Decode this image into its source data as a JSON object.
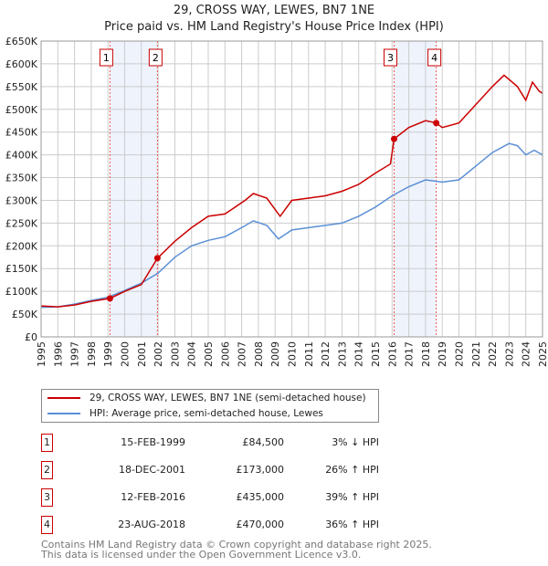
{
  "chart_data": {
    "type": "line",
    "title": "29, CROSS WAY, LEWES, BN7 1NE",
    "subtitle": "Price paid vs. HM Land Registry's House Price Index (HPI)",
    "xlim": [
      1995,
      2025
    ],
    "ylim": [
      0,
      650000
    ],
    "x_ticks": [
      "1995",
      "1996",
      "1997",
      "1998",
      "1999",
      "2000",
      "2001",
      "2002",
      "2003",
      "2004",
      "2005",
      "2006",
      "2007",
      "2008",
      "2009",
      "2010",
      "2011",
      "2012",
      "2013",
      "2014",
      "2015",
      "2016",
      "2017",
      "2018",
      "2019",
      "2020",
      "2021",
      "2022",
      "2023",
      "2024",
      "2025"
    ],
    "y_ticks": [
      "£0",
      "£50K",
      "£100K",
      "£150K",
      "£200K",
      "£250K",
      "£300K",
      "£350K",
      "£400K",
      "£450K",
      "£500K",
      "£550K",
      "£600K",
      "£650K"
    ],
    "grid": true,
    "series": [
      {
        "name": "29, CROSS WAY, LEWES, BN7 1NE (semi-detached house)",
        "color": "#cc0000",
        "x": [
          1995,
          1996,
          1997,
          1998,
          1999.12,
          2000,
          2001,
          2001.96,
          2003,
          2004,
          2005,
          2006,
          2007.2,
          2007.7,
          2008.5,
          2009.3,
          2010,
          2011,
          2012,
          2013,
          2014,
          2015,
          2015.9,
          2016.12,
          2017,
          2018,
          2018.64,
          2019,
          2020,
          2021,
          2022,
          2022.7,
          2023.5,
          2024,
          2024.4,
          2024.8,
          2025
        ],
        "y": [
          68000,
          66000,
          70000,
          78000,
          84500,
          100000,
          115000,
          173000,
          210000,
          240000,
          265000,
          270000,
          300000,
          315000,
          305000,
          265000,
          300000,
          305000,
          310000,
          320000,
          335000,
          360000,
          380000,
          435000,
          460000,
          475000,
          470000,
          460000,
          470000,
          510000,
          550000,
          575000,
          550000,
          520000,
          560000,
          540000,
          535000
        ]
      },
      {
        "name": "HPI: Average price, semi-detached house, Lewes",
        "color": "#5b8fd6",
        "x": [
          1995,
          1996,
          1997,
          1998,
          1999,
          2000,
          2001,
          2002,
          2003,
          2004,
          2005,
          2006,
          2007,
          2007.7,
          2008.5,
          2009.2,
          2010,
          2011,
          2012,
          2013,
          2014,
          2015,
          2016,
          2017,
          2018,
          2019,
          2020,
          2021,
          2022,
          2023,
          2023.5,
          2024,
          2024.5,
          2025
        ],
        "y": [
          65000,
          66000,
          72000,
          80000,
          87000,
          102000,
          118000,
          140000,
          175000,
          200000,
          212000,
          220000,
          240000,
          255000,
          245000,
          215000,
          235000,
          240000,
          245000,
          250000,
          265000,
          285000,
          310000,
          330000,
          345000,
          340000,
          345000,
          375000,
          405000,
          425000,
          420000,
          400000,
          410000,
          400000
        ]
      }
    ],
    "sales": [
      {
        "n": "1",
        "date": "15-FEB-1999",
        "x": 1999.12,
        "price": "£84,500",
        "price_value": 84500,
        "hpi": "3% ↓ HPI"
      },
      {
        "n": "2",
        "date": "18-DEC-2001",
        "x": 2001.96,
        "price": "£173,000",
        "price_value": 173000,
        "hpi": "26% ↑ HPI"
      },
      {
        "n": "3",
        "date": "12-FEB-2016",
        "x": 2016.12,
        "price": "£435,000",
        "price_value": 435000,
        "hpi": "39% ↑ HPI"
      },
      {
        "n": "4",
        "date": "23-AUG-2018",
        "x": 2018.64,
        "price": "£470,000",
        "price_value": 470000,
        "hpi": "36% ↑ HPI"
      }
    ],
    "shaded_spans": [
      [
        1999.12,
        2001.96
      ],
      [
        2016.12,
        2018.64
      ]
    ]
  },
  "legend": {
    "red": "29, CROSS WAY, LEWES, BN7 1NE (semi-detached house)",
    "blue": "HPI: Average price, semi-detached house, Lewes"
  },
  "footer": {
    "line1": "Contains HM Land Registry data © Crown copyright and database right 2025.",
    "line2": "This data is licensed under the Open Government Licence v3.0."
  }
}
